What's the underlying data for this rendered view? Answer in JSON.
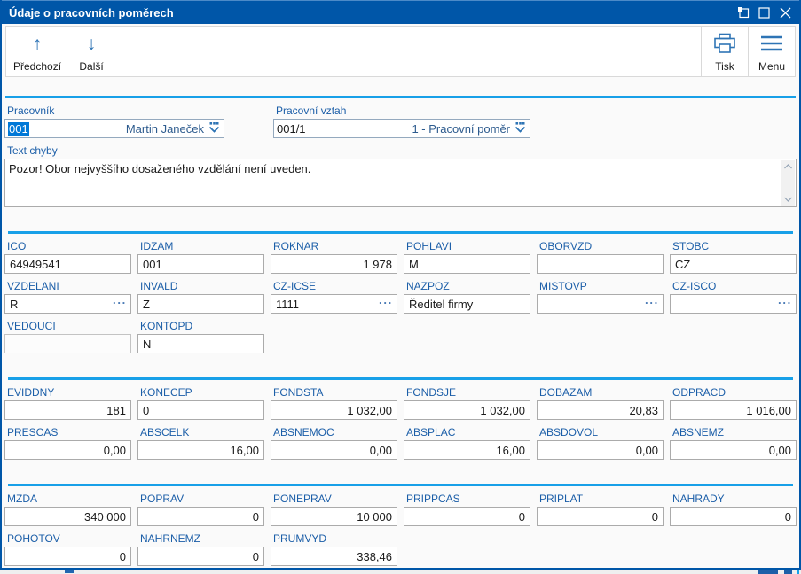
{
  "window": {
    "title": "Údaje o pracovních poměrech"
  },
  "toolbar": {
    "prev_label": "Předchozí",
    "next_label": "Další",
    "print_label": "Tisk",
    "menu_label": "Menu",
    "prev_glyph": "↑",
    "next_glyph": "↓"
  },
  "header": {
    "pracovnik": {
      "label": "Pracovník",
      "code": "001",
      "name": "Martin Janeček"
    },
    "vztah": {
      "label": "Pracovní vztah",
      "code": "001/1",
      "name": "1 - Pracovní poměr"
    }
  },
  "error_box": {
    "label": "Text chyby",
    "text": "Pozor! Obor nejvyššího dosaženého vzdělání není uveden."
  },
  "ellipsis_glyph": "···",
  "sections": [
    {
      "rows": [
        [
          {
            "label": "ICO",
            "value": "64949541",
            "align": "left"
          },
          {
            "label": "IDZAM",
            "value": "001",
            "align": "left"
          },
          {
            "label": "ROKNAR",
            "value": "1 978",
            "align": "right"
          },
          {
            "label": "POHLAVI",
            "value": "M",
            "align": "left"
          },
          {
            "label": "OBORVZD",
            "value": "",
            "align": "left"
          },
          {
            "label": "STOBC",
            "value": "CZ",
            "align": "left"
          }
        ],
        [
          {
            "label": "VZDELANI",
            "value": "R",
            "align": "left",
            "ellipsis": true
          },
          {
            "label": "INVALD",
            "value": "Z",
            "align": "left"
          },
          {
            "label": "CZ-ICSE",
            "value": "1111",
            "align": "left",
            "ellipsis": true
          },
          {
            "label": "NAZPOZ",
            "value": "Ředitel firmy",
            "align": "left"
          },
          {
            "label": "MISTOVP",
            "value": "",
            "align": "left",
            "ellipsis": true
          },
          {
            "label": "CZ-ISCO",
            "value": "",
            "align": "left",
            "ellipsis": true
          }
        ],
        [
          {
            "label": "VEDOUCI",
            "value": "",
            "align": "left",
            "disabled": true
          },
          {
            "label": "KONTOPD",
            "value": "N",
            "align": "left"
          }
        ]
      ]
    },
    {
      "rows": [
        [
          {
            "label": "EVIDDNY",
            "value": "181",
            "align": "right"
          },
          {
            "label": "KONECEP",
            "value": "0",
            "align": "left"
          },
          {
            "label": "FONDSTA",
            "value": "1 032,00",
            "align": "right"
          },
          {
            "label": "FONDSJE",
            "value": "1 032,00",
            "align": "right"
          },
          {
            "label": "DOBAZAM",
            "value": "20,83",
            "align": "right"
          },
          {
            "label": "ODPRACD",
            "value": "1 016,00",
            "align": "right"
          }
        ],
        [
          {
            "label": "PRESCAS",
            "value": "0,00",
            "align": "right"
          },
          {
            "label": "ABSCELK",
            "value": "16,00",
            "align": "right"
          },
          {
            "label": "ABSNEMOC",
            "value": "0,00",
            "align": "right"
          },
          {
            "label": "ABSPLAC",
            "value": "16,00",
            "align": "right"
          },
          {
            "label": "ABSDOVOL",
            "value": "0,00",
            "align": "right"
          },
          {
            "label": "ABSNEMZ",
            "value": "0,00",
            "align": "right"
          }
        ]
      ]
    },
    {
      "rows": [
        [
          {
            "label": "MZDA",
            "value": "340 000",
            "align": "right"
          },
          {
            "label": "POPRAV",
            "value": "0",
            "align": "right"
          },
          {
            "label": "PONEPRAV",
            "value": "10 000",
            "align": "right"
          },
          {
            "label": "PRIPPCAS",
            "value": "0",
            "align": "right"
          },
          {
            "label": "PRIPLAT",
            "value": "0",
            "align": "right"
          },
          {
            "label": "NAHRADY",
            "value": "0",
            "align": "right"
          }
        ],
        [
          {
            "label": "POHOTOV",
            "value": "0",
            "align": "right"
          },
          {
            "label": "NAHRNEMZ",
            "value": "0",
            "align": "right"
          },
          {
            "label": "PRUMVYD",
            "value": "338,46",
            "align": "right"
          }
        ]
      ]
    }
  ],
  "colors": {
    "titlebar": "#0056A8",
    "accent_line": "#18A0E8",
    "label_blue": "#1B5EA8",
    "selection": "#0078D7",
    "icon_blue": "#2E74B5"
  }
}
